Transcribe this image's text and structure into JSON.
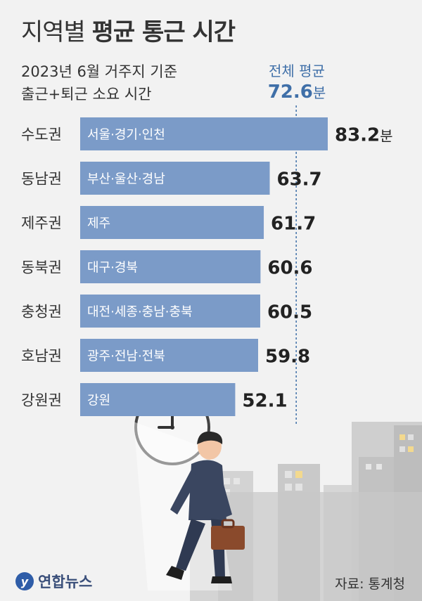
{
  "header": {
    "title_light": "지역별",
    "title_bold": "평균 통근 시간",
    "subtitle_line1": "2023년 6월 거주지 기준",
    "subtitle_line2": "출근+퇴근 소요 시간"
  },
  "average": {
    "label": "전체 평균",
    "value": "72.6",
    "unit": "분"
  },
  "chart_data": {
    "type": "bar",
    "orientation": "horizontal",
    "categories": [
      "수도권",
      "동남권",
      "제주권",
      "동북권",
      "충청권",
      "호남권",
      "강원권"
    ],
    "sublabels": [
      "서울·경기·인천",
      "부산·울산·경남",
      "제주",
      "대구·경북",
      "대전·세종·충남·충북",
      "광주·전남·전북",
      "강원"
    ],
    "values": [
      83.2,
      63.7,
      61.7,
      60.6,
      60.5,
      59.8,
      52.1
    ],
    "value_labels": [
      "83.2",
      "63.7",
      "61.7",
      "60.6",
      "60.5",
      "59.8",
      "52.1"
    ],
    "first_value_unit": "분",
    "reference_line": 72.6,
    "bar_color": "#7b9bc8",
    "reference_color": "#3f6fa8"
  },
  "footer": {
    "logo_text": "연합뉴스",
    "source": "자료: 통계청"
  }
}
